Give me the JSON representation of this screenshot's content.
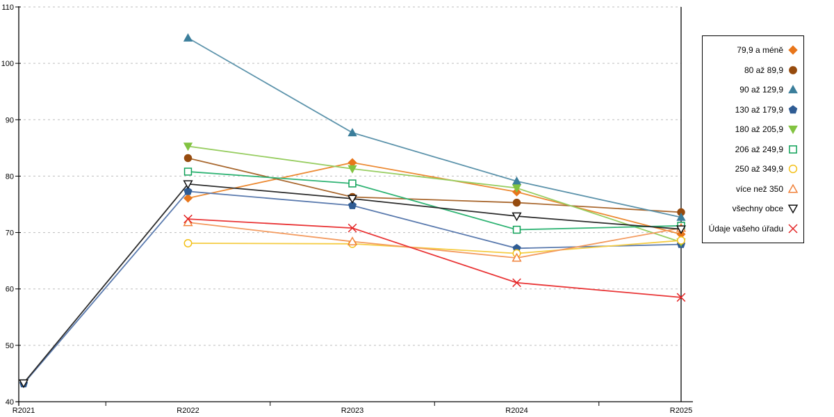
{
  "chart_data": {
    "type": "line",
    "title": "",
    "xlabel": "",
    "ylabel": "",
    "categories": [
      "R2021",
      "R2022",
      "R2023",
      "R2024",
      "R2025"
    ],
    "ylim": [
      40,
      110
    ],
    "yticks": [
      40,
      50,
      60,
      70,
      80,
      90,
      100,
      110
    ],
    "grid": "horizontal-dashed",
    "legend_position": "right",
    "series": [
      {
        "name": "79,9 a méně",
        "marker": "diamond",
        "style": "filled",
        "color": "#E8761B",
        "line_color": "#EC8A33",
        "values": [
          null,
          76.1,
          82.4,
          77.2,
          69.7
        ]
      },
      {
        "name": "80 až 89,9",
        "marker": "circle",
        "style": "filled",
        "color": "#964B0E",
        "line_color": "#A9682F",
        "values": [
          null,
          83.2,
          76.3,
          75.3,
          73.6
        ]
      },
      {
        "name": "90 až 129,9",
        "marker": "triangle-up",
        "style": "filled",
        "color": "#3B7E9B",
        "line_color": "#5C93AB",
        "values": [
          null,
          104.5,
          87.7,
          79.1,
          72.7
        ]
      },
      {
        "name": "130 až 179,9",
        "marker": "pentagon",
        "style": "filled",
        "color": "#2F5C94",
        "line_color": "#5A7AAE",
        "values": [
          43.2,
          77.3,
          74.8,
          67.2,
          67.9
        ]
      },
      {
        "name": "180 až 205,9",
        "marker": "triangle-down",
        "style": "filled",
        "color": "#82C341",
        "line_color": "#97CD60",
        "values": [
          null,
          85.3,
          81.3,
          77.9,
          68.3
        ]
      },
      {
        "name": "206 až 249,9",
        "marker": "square",
        "style": "open",
        "color": "#0EA157",
        "line_color": "#2EB373",
        "values": [
          null,
          80.8,
          78.7,
          70.5,
          71.2
        ]
      },
      {
        "name": "250 až 349,9",
        "marker": "circle",
        "style": "open",
        "color": "#F3C018",
        "line_color": "#F5CC42",
        "values": [
          null,
          68.1,
          68.0,
          66.3,
          68.6
        ]
      },
      {
        "name": "více než 350",
        "marker": "triangle-up",
        "style": "open",
        "color": "#F0823B",
        "line_color": "#F39A5E",
        "values": [
          null,
          71.8,
          68.4,
          65.5,
          70.8
        ]
      },
      {
        "name": "všechny obce",
        "marker": "triangle-down",
        "style": "open",
        "color": "#111111",
        "line_color": "#2B2B2B",
        "values": [
          43.3,
          78.6,
          76.0,
          72.9,
          70.6
        ]
      },
      {
        "name": "Údaje vašeho úřadu",
        "marker": "x",
        "style": "open",
        "color": "#E32223",
        "line_color": "#E93435",
        "values": [
          null,
          72.4,
          70.8,
          61.1,
          58.5
        ]
      }
    ]
  },
  "colors": {
    "background": "#FFFFFF",
    "axis": "#000000",
    "grid": "#BDBDBD",
    "tick_label": "#000000"
  }
}
